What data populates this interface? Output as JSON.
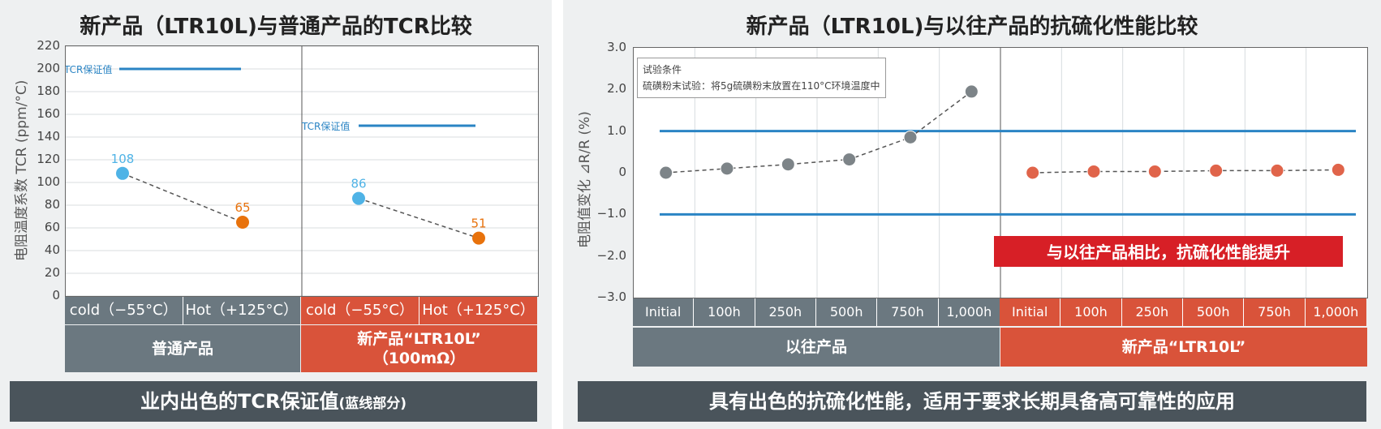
{
  "left": {
    "title": "新产品（LTR10L)与普通产品的TCR比较",
    "ylabel": "电阻温度系数 TCR (ppm/°C)",
    "yticks": [
      "220",
      "200",
      "180",
      "160",
      "140",
      "120",
      "100",
      "80",
      "60",
      "40",
      "20",
      "0"
    ],
    "guarantee_label": "TCR保证值",
    "groups": [
      {
        "name": "普通产品",
        "categories": [
          "cold（−55°C）",
          "Hot（+125°C）"
        ],
        "guarantee": 200,
        "values": [
          108,
          65
        ],
        "value_labels": [
          "108",
          "65"
        ]
      },
      {
        "name_line1": "新产品“LTR10L”",
        "name_line2": "（100mΩ）",
        "categories": [
          "cold（−55°C）",
          "Hot（+125°C）"
        ],
        "guarantee": 150,
        "values": [
          86,
          51
        ],
        "value_labels": [
          "86",
          "51"
        ]
      }
    ],
    "banner_main": "业内出色的TCR保证值",
    "banner_small": "(蓝线部分)"
  },
  "right": {
    "title": "新产品（LTR10L)与以往产品的抗硫化性能比较",
    "ylabel": "电阻值变化 ⊿R/R (%)",
    "yticks": [
      "3.0",
      "2.0",
      "1.0",
      "0",
      "−1.0",
      "−2.0",
      "−3.0"
    ],
    "test_title": "试验条件",
    "test_text": "硫磺粉末试验：将5g硫磺粉末放置在110°C环境温度中",
    "callout": "与以往产品相比，抗硫化性能提升",
    "categories": [
      "Initial",
      "100h",
      "250h",
      "500h",
      "750h",
      "1,000h"
    ],
    "group1": "以往产品",
    "group2": "新产品“LTR10L”",
    "banner": "具有出色的抗硫化性能，适用于要求长期具备高可靠性的应用"
  },
  "chart_data": [
    {
      "type": "line",
      "title": "新产品（LTR10L)与普通产品的TCR比较",
      "ylabel": "电阻温度系数 TCR (ppm/°C)",
      "ylim": [
        0,
        220
      ],
      "grid": true,
      "series": [
        {
          "name": "普通产品",
          "x": [
            "cold（−55°C）",
            "Hot（+125°C）"
          ],
          "values": [
            108,
            65
          ],
          "guarantee": 200
        },
        {
          "name": "新产品“LTR10L”（100mΩ）",
          "x": [
            "cold（−55°C）",
            "Hot（+125°C）"
          ],
          "values": [
            86,
            51
          ],
          "guarantee": 150
        }
      ],
      "colors": {
        "cold": "#4fb3e6",
        "hot": "#e8720c",
        "guarantee": "#2a84c4"
      }
    },
    {
      "type": "line",
      "title": "新产品（LTR10L)与以往产品的抗硫化性能比较",
      "ylabel": "电阻值变化 ⊿R/R (%)",
      "ylim": [
        -3.0,
        3.0
      ],
      "grid": true,
      "categories": [
        "Initial",
        "100h",
        "250h",
        "500h",
        "750h",
        "1,000h"
      ],
      "series": [
        {
          "name": "以往产品",
          "values": [
            0.0,
            0.1,
            0.2,
            0.32,
            0.85,
            1.95
          ],
          "color": "#7d8488"
        },
        {
          "name": "新产品“LTR10L”",
          "values": [
            0.0,
            0.03,
            0.03,
            0.05,
            0.05,
            0.07
          ],
          "color": "#e0644a"
        }
      ],
      "limit_lines": [
        1.0,
        -1.0
      ],
      "limit_color": "#2a84c4"
    }
  ]
}
